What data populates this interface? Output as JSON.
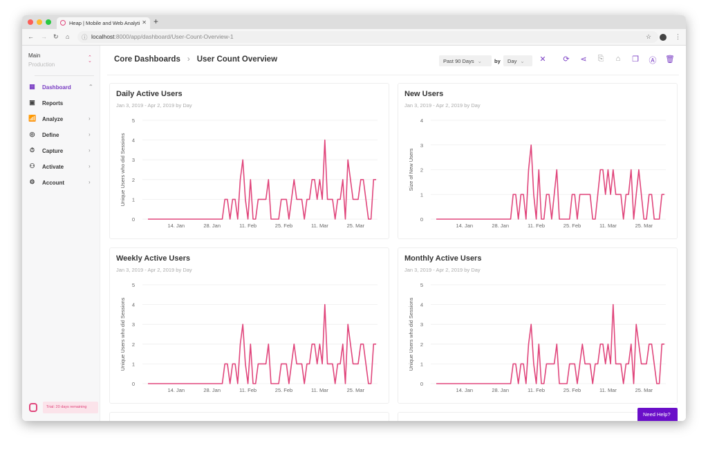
{
  "browser": {
    "tab_title": "Heap | Mobile and Web Analyti",
    "url_host": "localhost",
    "url_path": ":8000/app/dashboard/User-Count-Overview-1"
  },
  "sidebar": {
    "env_name": "Main",
    "env_sub": "Production",
    "items": [
      {
        "label": "Dashboard",
        "icon": "grid-icon",
        "active": true
      },
      {
        "label": "Reports",
        "icon": "report-icon"
      },
      {
        "label": "Analyze",
        "icon": "chart-icon"
      },
      {
        "label": "Define",
        "icon": "target-icon"
      },
      {
        "label": "Capture",
        "icon": "timer-icon"
      },
      {
        "label": "Activate",
        "icon": "award-icon"
      },
      {
        "label": "Account",
        "icon": "gear-icon"
      }
    ],
    "trial": "Trial: 20 days remaining"
  },
  "header": {
    "crumb_parent": "Core Dashboards",
    "crumb_current": "User Count Overview",
    "range": "Past 90 Days",
    "by": "by",
    "interval": "Day"
  },
  "help": "Need Help?",
  "colors": {
    "accent": "#7b3fc4",
    "line": "#e0457b"
  },
  "chart_data": [
    {
      "type": "line",
      "title": "Daily Active Users",
      "subtitle": "Jan 3, 2019 - Apr 2, 2019 by Day",
      "ylabel": "Unique Users who did Sessions",
      "ylim": [
        0,
        5
      ],
      "yticks": [
        "0",
        "1",
        "2",
        "3",
        "4",
        "5"
      ],
      "x_range": [
        "2019-01-03",
        "2019-04-02"
      ],
      "x_ticks": [
        {
          "label": "14. Jan",
          "date": "2019-01-14"
        },
        {
          "label": "28. Jan",
          "date": "2019-01-28"
        },
        {
          "label": "11. Feb",
          "date": "2019-02-11"
        },
        {
          "label": "25. Feb",
          "date": "2019-02-25"
        },
        {
          "label": "11. Mar",
          "date": "2019-03-11"
        },
        {
          "label": "25. Mar",
          "date": "2019-03-25"
        }
      ],
      "grid": true,
      "values": [
        0,
        0,
        0,
        0,
        0,
        0,
        0,
        0,
        0,
        0,
        0,
        0,
        0,
        0,
        0,
        0,
        0,
        0,
        0,
        0,
        0,
        0,
        0,
        0,
        0,
        0,
        0,
        0,
        0,
        0,
        1,
        1,
        0,
        1,
        1,
        0,
        2,
        3,
        1,
        0,
        2,
        0,
        0,
        1,
        1,
        1,
        1,
        2,
        0,
        0,
        0,
        0,
        1,
        1,
        1,
        0,
        1,
        2,
        1,
        1,
        1,
        0,
        1,
        1,
        2,
        2,
        1,
        2,
        1,
        4,
        1,
        1,
        1,
        0,
        1,
        1,
        2,
        0,
        3,
        2,
        1,
        1,
        1,
        2,
        2,
        1,
        0,
        0,
        2,
        2
      ]
    },
    {
      "type": "line",
      "title": "New Users",
      "subtitle": "Jan 3, 2019 - Apr 2, 2019 by Day",
      "ylabel": "Size of New Users",
      "ylim": [
        0,
        4
      ],
      "yticks": [
        "0",
        "1",
        "2",
        "3",
        "4"
      ],
      "x_range": [
        "2019-01-03",
        "2019-04-02"
      ],
      "x_ticks": [
        {
          "label": "14. Jan",
          "date": "2019-01-14"
        },
        {
          "label": "28. Jan",
          "date": "2019-01-28"
        },
        {
          "label": "11. Feb",
          "date": "2019-02-11"
        },
        {
          "label": "25. Feb",
          "date": "2019-02-25"
        },
        {
          "label": "11. Mar",
          "date": "2019-03-11"
        },
        {
          "label": "25. Mar",
          "date": "2019-03-25"
        }
      ],
      "grid": true,
      "values": [
        0,
        0,
        0,
        0,
        0,
        0,
        0,
        0,
        0,
        0,
        0,
        0,
        0,
        0,
        0,
        0,
        0,
        0,
        0,
        0,
        0,
        0,
        0,
        0,
        0,
        0,
        0,
        0,
        0,
        0,
        1,
        1,
        0,
        1,
        1,
        0,
        2,
        3,
        1,
        0,
        2,
        0,
        0,
        1,
        1,
        0,
        1,
        2,
        0,
        0,
        0,
        0,
        0,
        1,
        1,
        0,
        1,
        1,
        1,
        1,
        1,
        0,
        0,
        1,
        2,
        2,
        1,
        2,
        1,
        2,
        1,
        1,
        1,
        0,
        1,
        1,
        2,
        0,
        1,
        2,
        1,
        0,
        0,
        1,
        1,
        0,
        0,
        0,
        1,
        1
      ]
    },
    {
      "type": "line",
      "title": "Weekly Active Users",
      "subtitle": "Jan 3, 2019 - Apr 2, 2019 by Day",
      "ylabel": "Unique Users who did Sessions",
      "ylim": [
        0,
        5
      ],
      "yticks": [
        "0",
        "1",
        "2",
        "3",
        "4",
        "5"
      ],
      "x_range": [
        "2019-01-03",
        "2019-04-02"
      ],
      "x_ticks": [
        {
          "label": "14. Jan",
          "date": "2019-01-14"
        },
        {
          "label": "28. Jan",
          "date": "2019-01-28"
        },
        {
          "label": "11. Feb",
          "date": "2019-02-11"
        },
        {
          "label": "25. Feb",
          "date": "2019-02-25"
        },
        {
          "label": "11. Mar",
          "date": "2019-03-11"
        },
        {
          "label": "25. Mar",
          "date": "2019-03-25"
        }
      ],
      "grid": true,
      "values": [
        0,
        0,
        0,
        0,
        0,
        0,
        0,
        0,
        0,
        0,
        0,
        0,
        0,
        0,
        0,
        0,
        0,
        0,
        0,
        0,
        0,
        0,
        0,
        0,
        0,
        0,
        0,
        0,
        0,
        0,
        1,
        1,
        0,
        1,
        1,
        0,
        2,
        3,
        1,
        0,
        2,
        0,
        0,
        1,
        1,
        1,
        1,
        2,
        0,
        0,
        0,
        0,
        1,
        1,
        1,
        0,
        1,
        2,
        1,
        1,
        1,
        0,
        1,
        1,
        2,
        2,
        1,
        2,
        1,
        4,
        1,
        1,
        1,
        0,
        1,
        1,
        2,
        0,
        3,
        2,
        1,
        1,
        1,
        2,
        2,
        1,
        0,
        0,
        2,
        2
      ]
    },
    {
      "type": "line",
      "title": "Monthly Active Users",
      "subtitle": "Jan 3, 2019 - Apr 2, 2019 by Day",
      "ylabel": "Unique Users who did Sessions",
      "ylim": [
        0,
        5
      ],
      "yticks": [
        "0",
        "1",
        "2",
        "3",
        "4",
        "5"
      ],
      "x_range": [
        "2019-01-03",
        "2019-04-02"
      ],
      "x_ticks": [
        {
          "label": "14. Jan",
          "date": "2019-01-14"
        },
        {
          "label": "28. Jan",
          "date": "2019-01-28"
        },
        {
          "label": "11. Feb",
          "date": "2019-02-11"
        },
        {
          "label": "25. Feb",
          "date": "2019-02-25"
        },
        {
          "label": "11. Mar",
          "date": "2019-03-11"
        },
        {
          "label": "25. Mar",
          "date": "2019-03-25"
        }
      ],
      "grid": true,
      "values": [
        0,
        0,
        0,
        0,
        0,
        0,
        0,
        0,
        0,
        0,
        0,
        0,
        0,
        0,
        0,
        0,
        0,
        0,
        0,
        0,
        0,
        0,
        0,
        0,
        0,
        0,
        0,
        0,
        0,
        0,
        1,
        1,
        0,
        1,
        1,
        0,
        2,
        3,
        1,
        0,
        2,
        0,
        0,
        1,
        1,
        1,
        1,
        2,
        0,
        0,
        0,
        0,
        1,
        1,
        1,
        0,
        1,
        2,
        1,
        1,
        1,
        0,
        1,
        1,
        2,
        2,
        1,
        2,
        1,
        4,
        1,
        1,
        1,
        0,
        1,
        1,
        2,
        0,
        3,
        2,
        1,
        1,
        1,
        2,
        2,
        1,
        0,
        0,
        2,
        2
      ]
    }
  ]
}
